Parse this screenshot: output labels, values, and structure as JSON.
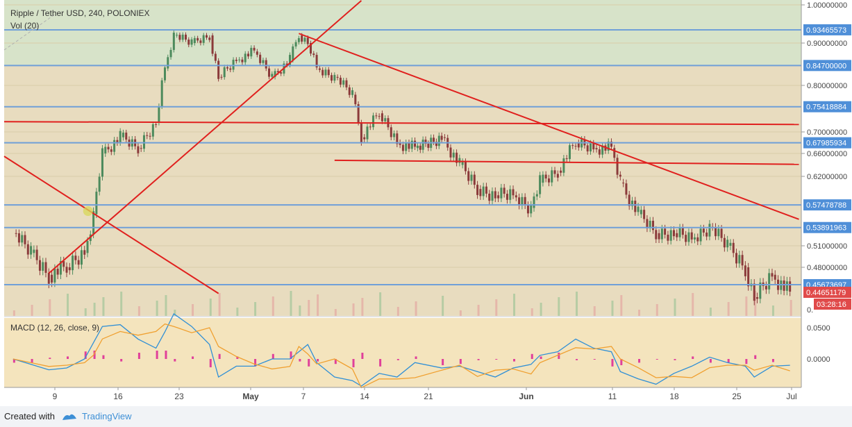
{
  "header": {
    "title": "Ripple / Tether USD, 240, POLONIEX",
    "volume_label": "Vol (20)"
  },
  "macd": {
    "label": "MACD (12, 26, close, 9)"
  },
  "footer": {
    "created_with": "Created with",
    "brand": "TradingView"
  },
  "colors": {
    "level_line": "#6f9fd8",
    "trend_line": "#e0201e",
    "up_candle": "#4c8a5c",
    "down_candle": "#8b3a3a",
    "macd_line": "#2f8fd6",
    "signal_line": "#f0a030",
    "histogram": "#e0409a",
    "price_tag_bg": "#e04a4a",
    "level_tag_bg": "#4f8fd8"
  },
  "chart_data": {
    "type": "candlestick",
    "symbol": "Ripple / Tether USD",
    "interval": "240",
    "exchange": "POLONIEX",
    "price_axis_ticks": [
      "1.00000000",
      "0.90000000",
      "0.80000000",
      "0.70000000",
      "0.66000000",
      "0.62000000",
      "0.51000000",
      "0.48000000"
    ],
    "macd_axis_ticks": [
      "0.0500",
      "0.0000"
    ],
    "time_axis_ticks": [
      "9",
      "16",
      "23",
      "May",
      "7",
      "14",
      "21",
      "Jun",
      "11",
      "18",
      "25",
      "Jul"
    ],
    "horizontal_levels": [
      "0.93465573",
      "0.84700000",
      "0.75418884",
      "0.67985934",
      "0.57478788",
      "0.53891963",
      "0.45673697"
    ],
    "current_price": "0.44651179",
    "countdown": "03:28:16",
    "truncated_axis_label": "0.",
    "price_path": [
      [
        "2018-04-03",
        0.53
      ],
      [
        "2018-04-05",
        0.5
      ],
      [
        "2018-04-07",
        0.47
      ],
      [
        "2018-04-09",
        0.48
      ],
      [
        "2018-04-11",
        0.5
      ],
      [
        "2018-04-12",
        0.56
      ],
      [
        "2018-04-13",
        0.66
      ],
      [
        "2018-04-15",
        0.69
      ],
      [
        "2018-04-17",
        0.67
      ],
      [
        "2018-04-19",
        0.72
      ],
      [
        "2018-04-20",
        0.84
      ],
      [
        "2018-04-21",
        0.92
      ],
      [
        "2018-04-23",
        0.9
      ],
      [
        "2018-04-25",
        0.92
      ],
      [
        "2018-04-26",
        0.82
      ],
      [
        "2018-04-28",
        0.86
      ],
      [
        "2018-04-30",
        0.88
      ],
      [
        "2018-05-02",
        0.82
      ],
      [
        "2018-05-04",
        0.86
      ],
      [
        "2018-05-05",
        0.92
      ],
      [
        "2018-05-06",
        0.9
      ],
      [
        "2018-05-07",
        0.84
      ],
      [
        "2018-05-09",
        0.82
      ],
      [
        "2018-05-11",
        0.78
      ],
      [
        "2018-05-12",
        0.69
      ],
      [
        "2018-05-14",
        0.74
      ],
      [
        "2018-05-16",
        0.68
      ],
      [
        "2018-05-18",
        0.67
      ],
      [
        "2018-05-21",
        0.69
      ],
      [
        "2018-05-23",
        0.64
      ],
      [
        "2018-05-25",
        0.6
      ],
      [
        "2018-05-27",
        0.59
      ],
      [
        "2018-05-29",
        0.59
      ],
      [
        "2018-05-31",
        0.57
      ],
      [
        "2018-06-01",
        0.61
      ],
      [
        "2018-06-03",
        0.63
      ],
      [
        "2018-06-05",
        0.68
      ],
      [
        "2018-06-07",
        0.67
      ],
      [
        "2018-06-09",
        0.67
      ],
      [
        "2018-06-10",
        0.61
      ],
      [
        "2018-06-12",
        0.56
      ],
      [
        "2018-06-14",
        0.53
      ],
      [
        "2018-06-16",
        0.53
      ],
      [
        "2018-06-18",
        0.52
      ],
      [
        "2018-06-20",
        0.54
      ],
      [
        "2018-06-22",
        0.51
      ],
      [
        "2018-06-24",
        0.48
      ],
      [
        "2018-06-25",
        0.44
      ],
      [
        "2018-06-27",
        0.47
      ],
      [
        "2018-06-29",
        0.445
      ]
    ]
  }
}
